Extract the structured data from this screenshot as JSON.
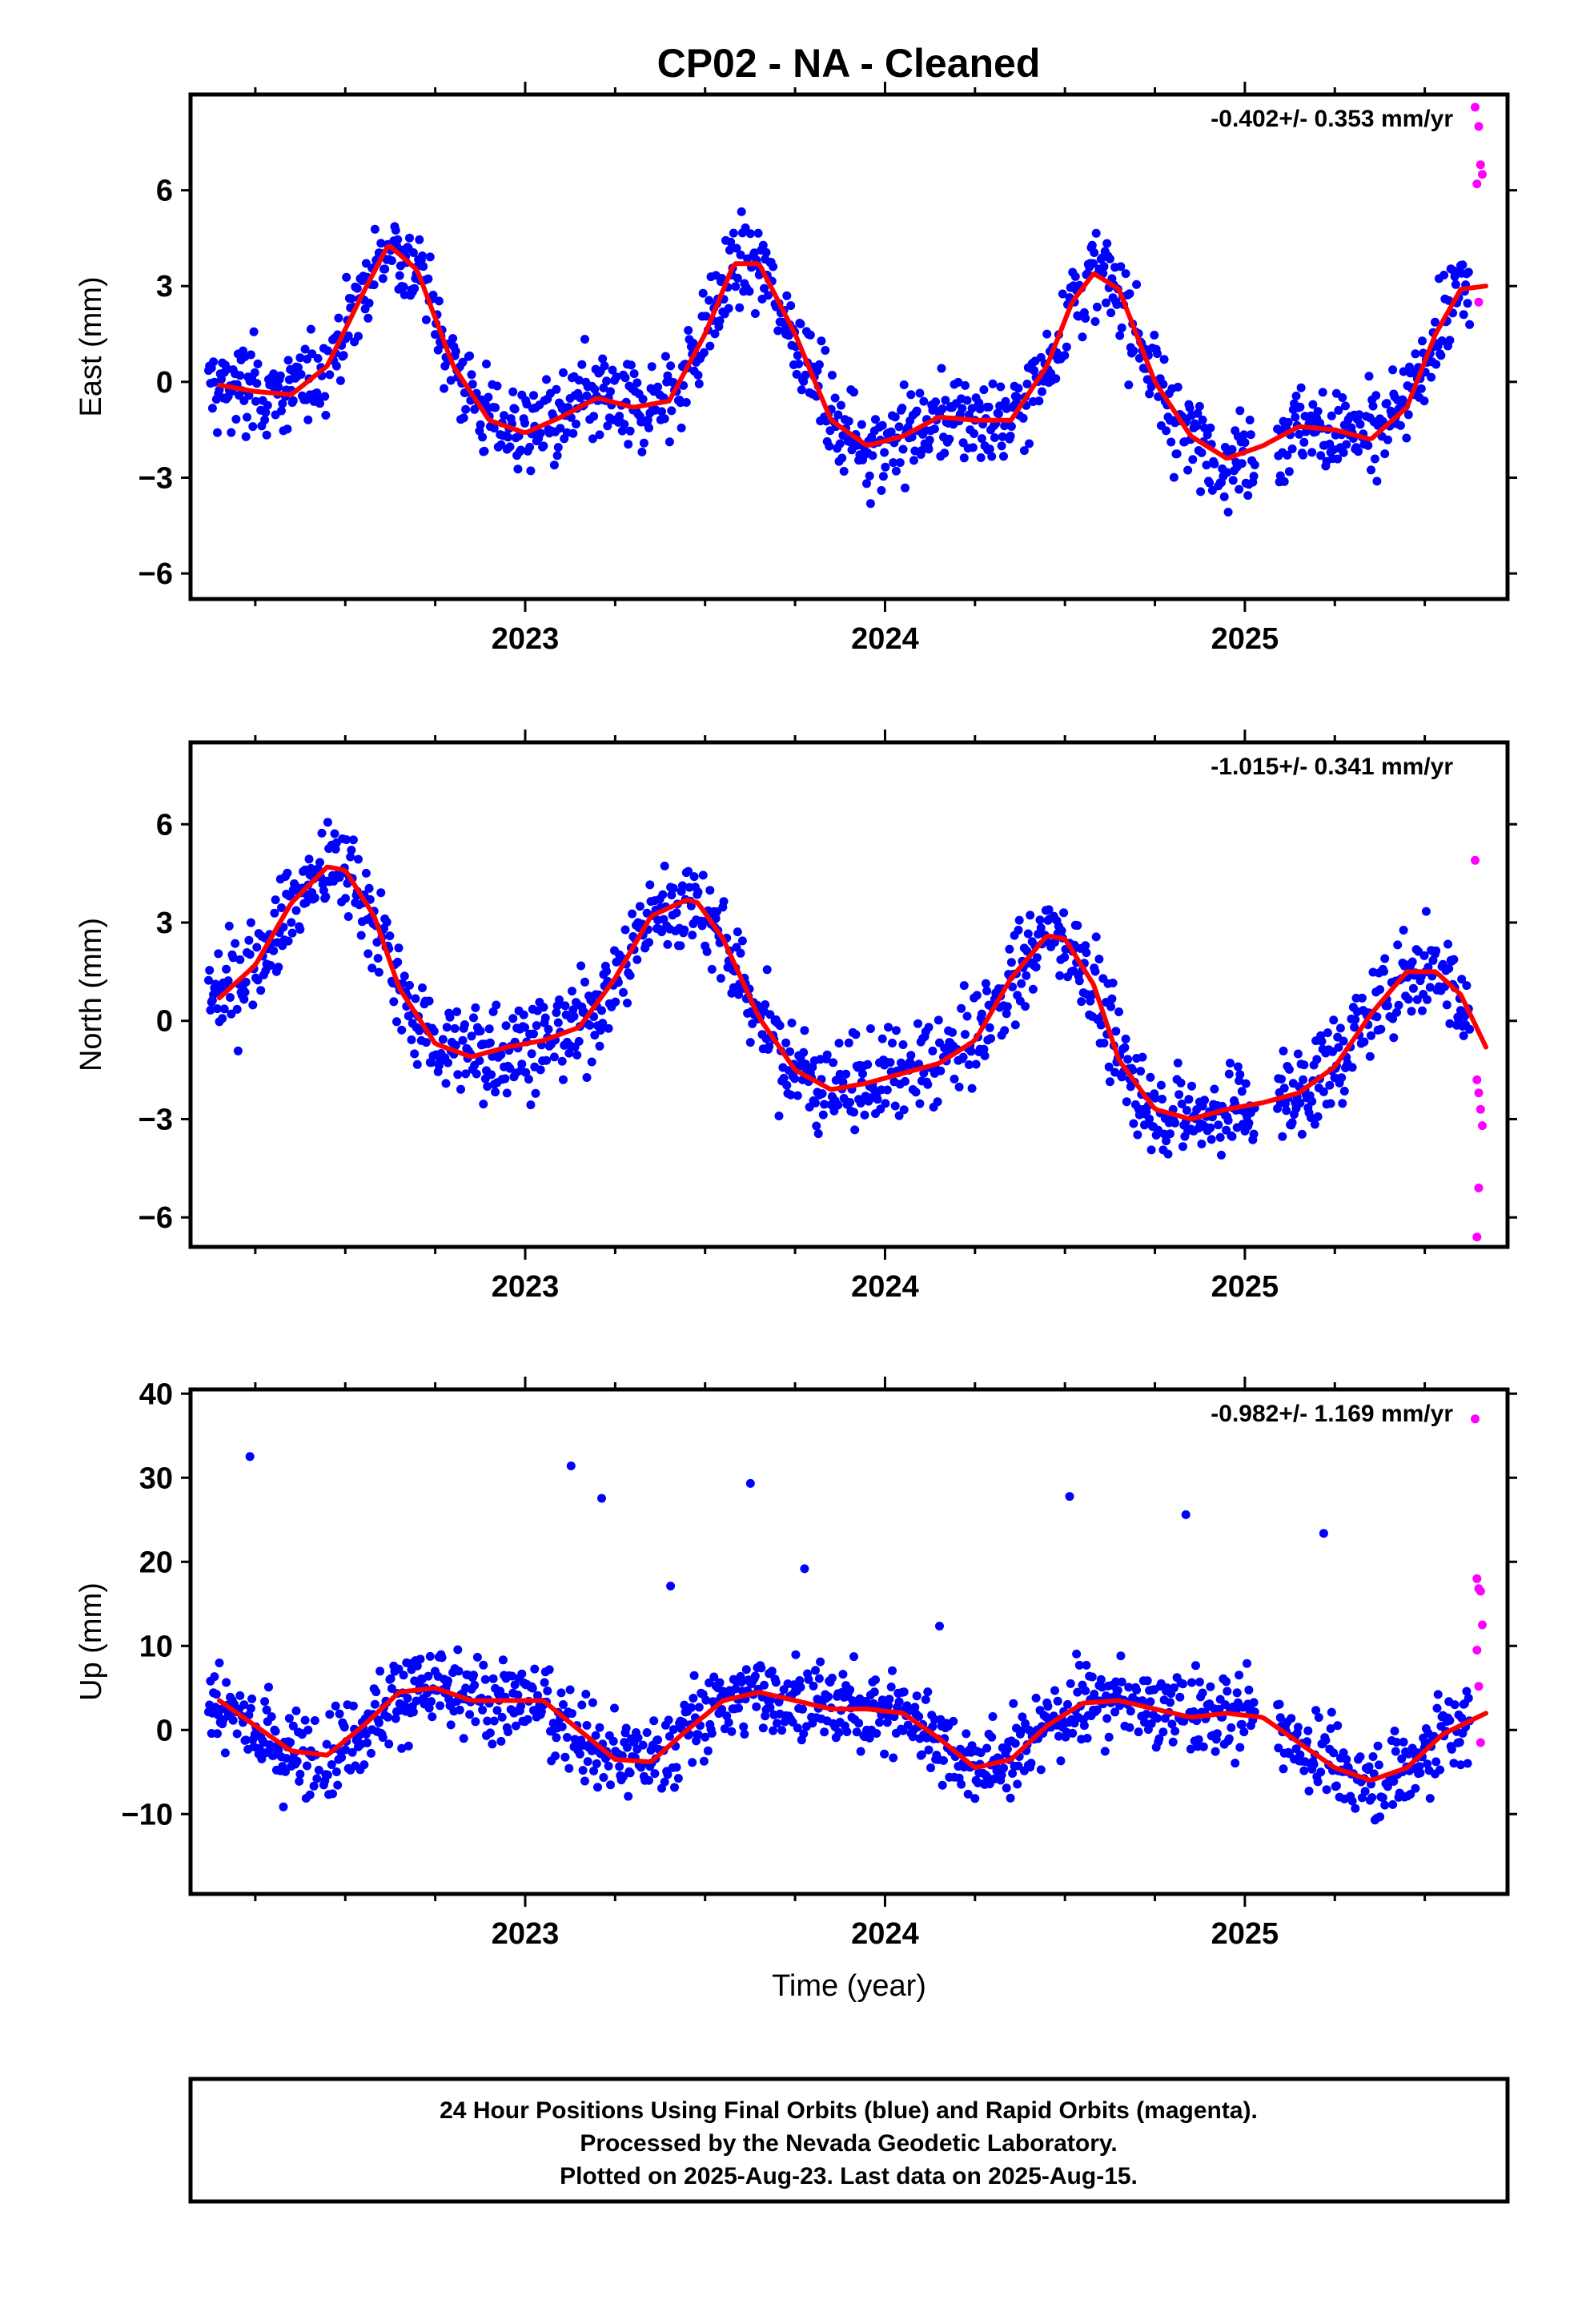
{
  "title": "CP02  - NA - Cleaned",
  "footer": {
    "line1": "24 Hour Positions Using Final Orbits (blue) and Rapid Orbits (magenta).",
    "line2": "Processed by the Nevada Geodetic Laboratory.",
    "line3": "Plotted on 2025-Aug-23. Last data on 2025-Aug-15."
  },
  "colors": {
    "final": "#0000ff",
    "rapid": "#ff00ff",
    "model": "#ff0000",
    "frame": "#000000"
  },
  "chart_data": [
    {
      "type": "scatter",
      "name": "east",
      "ylabel": "East (mm)",
      "xlabel": "",
      "rate": "-0.402+/- 0.353 mm/yr",
      "xlim": [
        2022.07,
        2025.73
      ],
      "ylim": [
        -6.8,
        9.0
      ],
      "yticks": [
        -6,
        -3,
        0,
        3,
        6
      ],
      "xticks": [
        2023,
        2024,
        2025
      ],
      "xtick_labels": [
        "2023",
        "2024",
        "2025"
      ],
      "model": {
        "x": [
          2022.15,
          2022.25,
          2022.35,
          2022.45,
          2022.55,
          2022.62,
          2022.7,
          2022.8,
          2022.9,
          2023.0,
          2023.1,
          2023.2,
          2023.3,
          2023.4,
          2023.5,
          2023.58,
          2023.65,
          2023.75,
          2023.85,
          2023.95,
          2024.05,
          2024.15,
          2024.25,
          2024.35,
          2024.45,
          2024.52,
          2024.58,
          2024.65,
          2024.75,
          2024.85,
          2024.95,
          2025.05,
          2025.15,
          2025.25,
          2025.35,
          2025.45,
          2025.53,
          2025.6,
          2025.67
        ],
        "y": [
          -0.1,
          -0.3,
          -0.4,
          0.5,
          2.8,
          4.3,
          3.5,
          0.5,
          -1.2,
          -1.6,
          -1.1,
          -0.5,
          -0.8,
          -0.6,
          1.5,
          3.7,
          3.7,
          1.5,
          -1.2,
          -2.0,
          -1.7,
          -1.1,
          -1.2,
          -1.2,
          0.5,
          2.5,
          3.4,
          2.9,
          0.0,
          -1.7,
          -2.4,
          -2.0,
          -1.4,
          -1.5,
          -1.8,
          -0.8,
          1.5,
          2.9,
          3.0
        ]
      },
      "rapid": {
        "x": [
          2025.64,
          2025.65,
          2025.66,
          2025.655,
          2025.645,
          2025.65
        ],
        "y": [
          8.6,
          8.0,
          6.5,
          6.8,
          6.2,
          2.5
        ]
      }
    },
    {
      "type": "scatter",
      "name": "north",
      "ylabel": "North (mm)",
      "xlabel": "",
      "rate": "-1.015+/- 0.341 mm/yr",
      "xlim": [
        2022.07,
        2025.73
      ],
      "ylim": [
        -6.9,
        8.5
      ],
      "yticks": [
        -6,
        -3,
        0,
        3,
        6
      ],
      "xticks": [
        2023,
        2024,
        2025
      ],
      "xtick_labels": [
        "2023",
        "2024",
        "2025"
      ],
      "model": {
        "x": [
          2022.15,
          2022.25,
          2022.35,
          2022.45,
          2022.5,
          2022.58,
          2022.65,
          2022.75,
          2022.85,
          2022.95,
          2023.05,
          2023.15,
          2023.25,
          2023.35,
          2023.45,
          2023.48,
          2023.55,
          2023.65,
          2023.75,
          2023.85,
          2023.95,
          2024.05,
          2024.15,
          2024.25,
          2024.35,
          2024.45,
          2024.5,
          2024.58,
          2024.65,
          2024.75,
          2024.85,
          2024.95,
          2025.05,
          2025.15,
          2025.25,
          2025.35,
          2025.45,
          2025.53,
          2025.6,
          2025.67
        ],
        "y": [
          0.7,
          1.7,
          3.6,
          4.7,
          4.6,
          3.2,
          1.0,
          -0.7,
          -1.1,
          -0.8,
          -0.6,
          -0.2,
          1.3,
          3.2,
          3.7,
          3.6,
          2.5,
          0.1,
          -1.5,
          -2.1,
          -1.9,
          -1.6,
          -1.3,
          -0.6,
          1.3,
          2.6,
          2.5,
          1.1,
          -1.2,
          -2.7,
          -3.0,
          -2.7,
          -2.5,
          -2.2,
          -1.4,
          0.2,
          1.5,
          1.5,
          0.8,
          -0.8
        ]
      },
      "rapid": {
        "x": [
          2025.64,
          2025.645,
          2025.65,
          2025.655,
          2025.66,
          2025.65,
          2025.645
        ],
        "y": [
          4.9,
          -1.8,
          -2.2,
          -2.7,
          -3.2,
          -5.1,
          -6.6
        ]
      }
    },
    {
      "type": "scatter",
      "name": "up",
      "ylabel": "Up (mm)",
      "xlabel": "Time (year)",
      "rate": "-0.982+/- 1.169 mm/yr",
      "xlim": [
        2022.07,
        2025.73
      ],
      "ylim": [
        -19.5,
        40.5
      ],
      "yticks": [
        -10,
        0,
        10,
        20,
        30,
        40
      ],
      "xticks": [
        2023,
        2024,
        2025
      ],
      "xtick_labels": [
        "2023",
        "2024",
        "2025"
      ],
      "model": {
        "x": [
          2022.15,
          2022.25,
          2022.35,
          2022.45,
          2022.55,
          2022.65,
          2022.75,
          2022.85,
          2022.95,
          2023.05,
          2023.15,
          2023.25,
          2023.35,
          2023.45,
          2023.55,
          2023.65,
          2023.75,
          2023.85,
          2023.95,
          2024.05,
          2024.15,
          2024.25,
          2024.35,
          2024.45,
          2024.55,
          2024.65,
          2024.75,
          2024.85,
          2024.95,
          2025.05,
          2025.15,
          2025.25,
          2025.35,
          2025.45,
          2025.55,
          2025.67
        ],
        "y": [
          3.5,
          0.5,
          -2.5,
          -3.0,
          0.5,
          4.5,
          5.0,
          3.5,
          3.5,
          3.5,
          0.0,
          -3.5,
          -3.8,
          0.0,
          3.5,
          4.5,
          3.5,
          2.5,
          2.5,
          2.0,
          -1.0,
          -4.5,
          -3.5,
          0.5,
          3.2,
          3.5,
          2.5,
          1.5,
          2.0,
          1.5,
          -1.5,
          -4.5,
          -6.0,
          -4.5,
          -0.5,
          2.0
        ]
      },
      "rapid": {
        "x": [
          2025.64,
          2025.645,
          2025.65,
          2025.655,
          2025.66,
          2025.645,
          2025.65,
          2025.655
        ],
        "y": [
          37.0,
          18.0,
          16.8,
          16.5,
          12.5,
          9.5,
          5.2,
          -1.5
        ]
      }
    }
  ]
}
